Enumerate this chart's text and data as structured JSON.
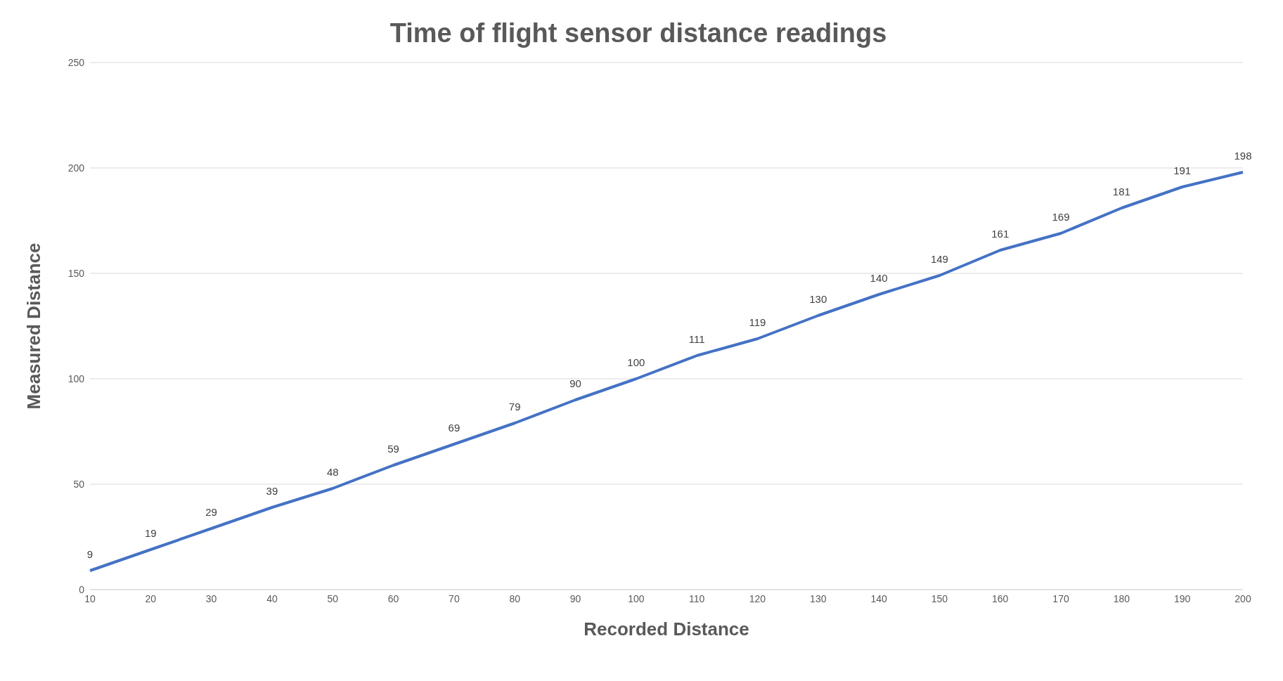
{
  "chart_data": {
    "type": "line",
    "title": "Time of flight sensor distance readings",
    "xlabel": "Recorded Distance",
    "ylabel": "Measured Distance",
    "categories": [
      "10",
      "20",
      "30",
      "40",
      "50",
      "60",
      "70",
      "80",
      "90",
      "100",
      "110",
      "120",
      "130",
      "140",
      "150",
      "160",
      "170",
      "180",
      "190",
      "200"
    ],
    "series": [
      {
        "color": "#4472c4",
        "values": [
          9,
          19,
          29,
          39,
          48,
          59,
          69,
          79,
          90,
          100,
          111,
          119,
          130,
          140,
          149,
          161,
          169,
          181,
          191,
          198
        ]
      }
    ],
    "ylim": [
      0,
      250
    ],
    "yticks": [
      0,
      50,
      100,
      150,
      200,
      250
    ],
    "grid": "y",
    "legend": false,
    "marker": "none",
    "line_style": "solid",
    "data_labels": true
  }
}
